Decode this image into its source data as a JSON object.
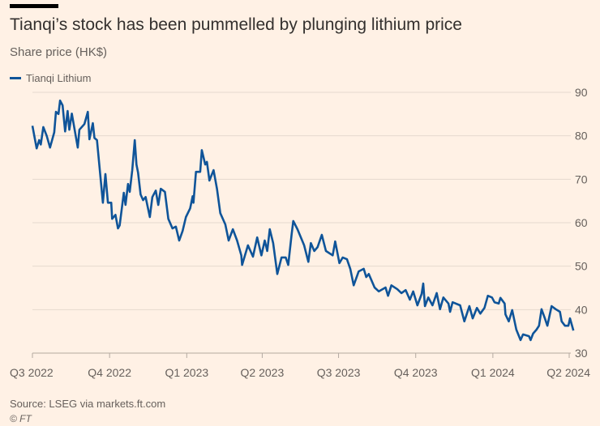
{
  "header": {
    "title": "Tianqi’s stock has been pummelled by plunging lithium price",
    "subtitle": "Share price (HK$)"
  },
  "footer": {
    "source": "Source: LSEG via markets.ft.com",
    "credit": "© FT"
  },
  "colors": {
    "line": "#0f5499",
    "background": "#fff1e5",
    "grid": "#e6d9ce"
  },
  "chart_data": {
    "type": "line",
    "title": "Tianqi’s stock has been pummelled by plunging lithium price",
    "ylabel": "Share price (HK$)",
    "xlabel": "",
    "x_units": "days since 1 Jul 2022",
    "ylim": [
      30,
      90
    ],
    "xlim": [
      0,
      640
    ],
    "yticks": [
      30,
      40,
      50,
      60,
      70,
      80,
      90
    ],
    "xticks": [
      {
        "day": 0,
        "label": "Q3 2022"
      },
      {
        "day": 92,
        "label": "Q4 2022"
      },
      {
        "day": 184,
        "label": "Q1 2023"
      },
      {
        "day": 274,
        "label": "Q2 2023"
      },
      {
        "day": 365,
        "label": "Q3 2023"
      },
      {
        "day": 457,
        "label": "Q4 2023"
      },
      {
        "day": 549,
        "label": "Q1 2024"
      },
      {
        "day": 640,
        "label": "Q2 2024"
      }
    ],
    "legend": "top-left",
    "grid": true,
    "series": [
      {
        "name": "Tianqi Lithium",
        "points": [
          [
            0,
            82.3
          ],
          [
            3,
            79.2
          ],
          [
            5,
            77.1
          ],
          [
            8,
            79
          ],
          [
            10,
            78
          ],
          [
            13,
            82
          ],
          [
            17,
            80
          ],
          [
            21,
            77.3
          ],
          [
            26,
            80.8
          ],
          [
            28,
            85.5
          ],
          [
            31,
            85
          ],
          [
            33,
            88.1
          ],
          [
            36,
            87
          ],
          [
            39,
            81
          ],
          [
            42,
            85.7
          ],
          [
            44,
            81.4
          ],
          [
            47,
            85.1
          ],
          [
            54,
            77.3
          ],
          [
            56,
            81.4
          ],
          [
            62,
            82.7
          ],
          [
            66,
            85.5
          ],
          [
            68,
            79.2
          ],
          [
            72,
            82.9
          ],
          [
            74,
            79.5
          ],
          [
            77,
            79
          ],
          [
            84,
            64.6
          ],
          [
            87,
            71.2
          ],
          [
            90,
            64.6
          ],
          [
            94,
            64.6
          ],
          [
            95,
            60.9
          ],
          [
            99,
            61.8
          ],
          [
            102,
            58.7
          ],
          [
            104,
            59.4
          ],
          [
            109,
            66.9
          ],
          [
            111,
            64.1
          ],
          [
            114,
            68.9
          ],
          [
            116,
            67.1
          ],
          [
            119,
            72.1
          ],
          [
            122,
            79
          ],
          [
            124,
            73.4
          ],
          [
            126,
            71.5
          ],
          [
            129,
            66.5
          ],
          [
            132,
            65.2
          ],
          [
            135,
            65.9
          ],
          [
            140,
            61.3
          ],
          [
            143,
            65.9
          ],
          [
            147,
            67.4
          ],
          [
            150,
            64.1
          ],
          [
            153,
            67.8
          ],
          [
            158,
            67.1
          ],
          [
            162,
            60.9
          ],
          [
            167,
            58.7
          ],
          [
            171,
            59.1
          ],
          [
            175,
            55.9
          ],
          [
            179,
            58.1
          ],
          [
            183,
            61.3
          ],
          [
            188,
            63.3
          ],
          [
            191,
            66.1
          ],
          [
            192,
            64.6
          ],
          [
            195,
            71.7
          ],
          [
            200,
            71.7
          ],
          [
            202,
            76.7
          ],
          [
            206,
            73.4
          ],
          [
            208,
            74
          ],
          [
            211,
            69.7
          ],
          [
            216,
            72.1
          ],
          [
            220,
            67.8
          ],
          [
            224,
            62.2
          ],
          [
            230,
            59.6
          ],
          [
            234,
            55.9
          ],
          [
            239,
            58.5
          ],
          [
            244,
            55.9
          ],
          [
            249,
            52.5
          ],
          [
            250,
            50.3
          ],
          [
            257,
            54.8
          ],
          [
            263,
            52.2
          ],
          [
            268,
            56.6
          ],
          [
            273,
            52.5
          ],
          [
            277,
            55.9
          ],
          [
            280,
            53.5
          ],
          [
            283,
            58.5
          ],
          [
            287,
            55.3
          ],
          [
            292,
            48.2
          ],
          [
            297,
            52
          ],
          [
            302,
            52
          ],
          [
            305,
            50.3
          ],
          [
            309,
            57.2
          ],
          [
            311,
            60.4
          ],
          [
            316,
            58.5
          ],
          [
            324,
            54.8
          ],
          [
            329,
            51
          ],
          [
            332,
            55.3
          ],
          [
            336,
            53.5
          ],
          [
            340,
            54.4
          ],
          [
            345,
            57.2
          ],
          [
            350,
            53.5
          ],
          [
            358,
            52.5
          ],
          [
            361,
            55.7
          ],
          [
            366,
            50.7
          ],
          [
            370,
            52
          ],
          [
            375,
            51.6
          ],
          [
            379,
            49.4
          ],
          [
            383,
            45.6
          ],
          [
            389,
            48.8
          ],
          [
            395,
            49.4
          ],
          [
            398,
            47.5
          ],
          [
            401,
            48.2
          ],
          [
            408,
            45.1
          ],
          [
            413,
            44.2
          ],
          [
            421,
            45.1
          ],
          [
            424,
            43.2
          ],
          [
            428,
            45.6
          ],
          [
            435,
            44.7
          ],
          [
            440,
            43.8
          ],
          [
            445,
            44.5
          ],
          [
            450,
            42.3
          ],
          [
            454,
            44.2
          ],
          [
            459,
            41
          ],
          [
            464,
            43.6
          ],
          [
            466,
            46
          ],
          [
            468,
            40.8
          ],
          [
            472,
            42.8
          ],
          [
            477,
            41
          ],
          [
            482,
            43.8
          ],
          [
            486,
            40.1
          ],
          [
            490,
            42.8
          ],
          [
            496,
            41.4
          ],
          [
            498,
            39.5
          ],
          [
            501,
            41.7
          ],
          [
            510,
            41
          ],
          [
            515,
            37.3
          ],
          [
            521,
            40.8
          ],
          [
            525,
            38
          ],
          [
            530,
            40.4
          ],
          [
            534,
            39.1
          ],
          [
            539,
            40.4
          ],
          [
            543,
            43.2
          ],
          [
            548,
            42.8
          ],
          [
            551,
            41.7
          ],
          [
            556,
            41.4
          ],
          [
            558,
            42.7
          ],
          [
            563,
            41.4
          ],
          [
            564,
            38.9
          ],
          [
            568,
            37.3
          ],
          [
            572,
            39.9
          ],
          [
            577,
            35.4
          ],
          [
            582,
            33
          ],
          [
            585,
            34.3
          ],
          [
            592,
            33.9
          ],
          [
            594,
            33
          ],
          [
            597,
            34.5
          ],
          [
            601,
            35.4
          ],
          [
            604,
            36.3
          ],
          [
            607,
            40.1
          ],
          [
            611,
            38
          ],
          [
            614,
            36.3
          ],
          [
            619,
            40.8
          ],
          [
            624,
            40.1
          ],
          [
            629,
            39.5
          ],
          [
            631,
            37.3
          ],
          [
            635,
            36.3
          ],
          [
            639,
            36.3
          ],
          [
            641,
            38
          ],
          [
            645,
            35.2
          ]
        ]
      }
    ]
  }
}
